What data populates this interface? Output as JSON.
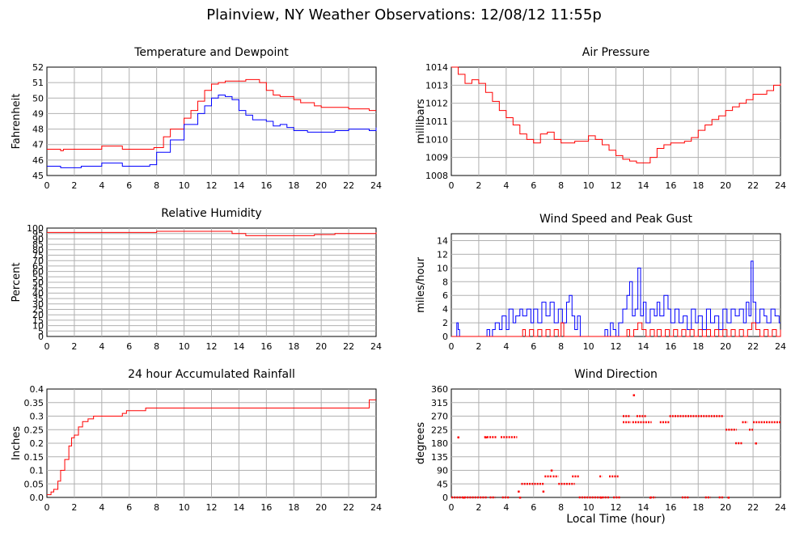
{
  "title": "Plainview, NY Weather Observations: 12/08/12 11:55p",
  "x_axis_label": "Local Time (hour)",
  "colors": {
    "red": "#ff0000",
    "blue": "#0000ff",
    "grid": "#b0b0b0"
  },
  "chart_data": [
    {
      "type": "line",
      "title": "Temperature and Dewpoint",
      "ylabel": "Fahrenheit",
      "xlim": [
        0,
        24
      ],
      "ylim": [
        45,
        52
      ],
      "xticks": [
        0,
        2,
        4,
        6,
        8,
        10,
        12,
        14,
        16,
        18,
        20,
        22,
        24
      ],
      "yticks": [
        45,
        46,
        47,
        48,
        49,
        50,
        51,
        52
      ],
      "grid": true,
      "series": [
        {
          "color": "#ff0000",
          "x": [
            0,
            1,
            1.2,
            2.5,
            4,
            5.5,
            7.8,
            8.5,
            9,
            10,
            10.5,
            11,
            11.5,
            12,
            12.5,
            13,
            14,
            14.5,
            15,
            15.5,
            16,
            16.5,
            17,
            18,
            18.5,
            19.5,
            20,
            21,
            22,
            23,
            23.5,
            24
          ],
          "y": [
            46.7,
            46.6,
            46.7,
            46.7,
            46.9,
            46.7,
            46.8,
            47.5,
            48,
            48.7,
            49.2,
            49.8,
            50.5,
            50.9,
            51,
            51.1,
            51.1,
            51.2,
            51.2,
            51,
            50.5,
            50.2,
            50.1,
            49.9,
            49.7,
            49.5,
            49.4,
            49.4,
            49.3,
            49.3,
            49.2,
            49.2
          ]
        },
        {
          "color": "#0000ff",
          "x": [
            0,
            1,
            2.5,
            4,
            5.5,
            7.5,
            8,
            9,
            10,
            11,
            11.5,
            12,
            12.5,
            13,
            13.5,
            14,
            14.5,
            15,
            16,
            16.5,
            17,
            17.5,
            18,
            19,
            20,
            21,
            22,
            23,
            23.5,
            24
          ],
          "y": [
            45.6,
            45.5,
            45.6,
            45.8,
            45.6,
            45.7,
            46.5,
            47.3,
            48.3,
            49,
            49.5,
            50,
            50.2,
            50.1,
            49.9,
            49.2,
            48.9,
            48.6,
            48.5,
            48.2,
            48.3,
            48.1,
            47.9,
            47.8,
            47.8,
            47.9,
            48,
            48,
            47.9,
            48.1
          ]
        }
      ]
    },
    {
      "type": "line",
      "title": "Air Pressure",
      "ylabel": "millibars",
      "xlim": [
        0,
        24
      ],
      "ylim": [
        1008,
        1014
      ],
      "xticks": [
        0,
        2,
        4,
        6,
        8,
        10,
        12,
        14,
        16,
        18,
        20,
        22,
        24
      ],
      "yticks": [
        1008,
        1009,
        1010,
        1011,
        1012,
        1013,
        1014
      ],
      "grid": true,
      "series": [
        {
          "color": "#ff0000",
          "x": [
            0,
            0.5,
            1,
            1.5,
            2,
            2.5,
            3,
            3.5,
            4,
            4.5,
            5,
            5.5,
            6,
            6.5,
            7,
            7.5,
            8,
            9,
            10,
            10.5,
            11,
            11.5,
            12,
            12.5,
            13,
            13.5,
            14,
            14.5,
            15,
            15.5,
            16,
            17,
            17.5,
            18,
            18.5,
            19,
            19.5,
            20,
            20.5,
            21,
            21.5,
            22,
            23,
            23.5,
            24
          ],
          "y": [
            1014,
            1013.6,
            1013.1,
            1013.3,
            1013.1,
            1012.6,
            1012.1,
            1011.6,
            1011.2,
            1010.8,
            1010.3,
            1010,
            1009.8,
            1010.3,
            1010.4,
            1010,
            1009.8,
            1009.9,
            1010.2,
            1010,
            1009.7,
            1009.4,
            1009.1,
            1008.9,
            1008.8,
            1008.7,
            1008.7,
            1009,
            1009.5,
            1009.7,
            1009.8,
            1009.9,
            1010.1,
            1010.5,
            1010.8,
            1011.1,
            1011.3,
            1011.6,
            1011.8,
            1012,
            1012.2,
            1012.5,
            1012.7,
            1013,
            1013.1
          ]
        }
      ]
    },
    {
      "type": "line",
      "title": "Relative Humidity",
      "ylabel": "Percent",
      "xlim": [
        0,
        24
      ],
      "ylim": [
        0,
        100
      ],
      "xticks": [
        0,
        2,
        4,
        6,
        8,
        10,
        12,
        14,
        16,
        18,
        20,
        22,
        24
      ],
      "yticks": [
        0,
        5,
        10,
        15,
        20,
        25,
        30,
        35,
        40,
        45,
        50,
        55,
        60,
        65,
        70,
        75,
        80,
        85,
        90,
        95,
        100
      ],
      "grid": true,
      "series": [
        {
          "color": "#ff0000",
          "x": [
            0,
            8,
            12.5,
            13.5,
            14.5,
            16,
            19.5,
            21,
            24
          ],
          "y": [
            96,
            97,
            97,
            95,
            93,
            93,
            94,
            95,
            96
          ]
        }
      ]
    },
    {
      "type": "line",
      "title": "Wind Speed and Peak Gust",
      "ylabel": "miles/hour",
      "xlim": [
        0,
        24
      ],
      "ylim": [
        0,
        15
      ],
      "xticks": [
        0,
        2,
        4,
        6,
        8,
        10,
        12,
        14,
        16,
        18,
        20,
        22,
        24
      ],
      "yticks": [
        0,
        2,
        4,
        6,
        8,
        10,
        12,
        14
      ],
      "grid": true,
      "series": [
        {
          "color": "#0000ff",
          "x": [
            0,
            0.3,
            0.4,
            0.5,
            0.6,
            2.5,
            2.6,
            2.8,
            3.0,
            3.2,
            3.5,
            3.7,
            4.0,
            4.2,
            4.5,
            4.7,
            5.0,
            5.2,
            5.5,
            5.8,
            6.0,
            6.3,
            6.6,
            6.9,
            7.2,
            7.5,
            7.8,
            8.1,
            8.4,
            8.6,
            8.8,
            9.0,
            9.2,
            9.4,
            11.0,
            11.2,
            11.4,
            11.6,
            11.8,
            12.0,
            12.2,
            12.5,
            12.8,
            13.0,
            13.2,
            13.4,
            13.6,
            13.8,
            14.0,
            14.2,
            14.5,
            14.8,
            15.0,
            15.2,
            15.5,
            15.8,
            16.0,
            16.3,
            16.6,
            16.9,
            17.2,
            17.5,
            17.8,
            18.0,
            18.3,
            18.6,
            18.9,
            19.2,
            19.5,
            19.8,
            20.1,
            20.4,
            20.7,
            21.0,
            21.3,
            21.5,
            21.7,
            21.85,
            22.0,
            22.2,
            22.5,
            22.8,
            23.0,
            23.3,
            23.6,
            23.9,
            24.0
          ],
          "y": [
            0,
            0,
            2,
            1,
            0,
            0,
            1,
            0,
            1,
            2,
            1,
            3,
            1,
            4,
            2,
            3,
            4,
            3,
            4,
            2,
            4,
            2,
            5,
            3,
            5,
            2,
            4,
            2,
            5,
            6,
            3,
            1,
            3,
            0,
            0,
            1,
            0,
            2,
            1,
            0,
            2,
            4,
            6,
            8,
            3,
            4,
            10,
            3,
            5,
            2,
            4,
            3,
            5,
            3,
            6,
            4,
            2,
            4,
            2,
            3,
            1,
            4,
            2,
            3,
            1,
            4,
            2,
            3,
            1,
            4,
            2,
            4,
            3,
            4,
            2,
            5,
            3,
            11,
            5,
            2,
            4,
            3,
            2,
            4,
            3,
            2,
            2
          ]
        },
        {
          "color": "#ff0000",
          "x": [
            0,
            5.0,
            5.2,
            5.4,
            5.7,
            6.0,
            6.3,
            6.6,
            6.9,
            7.2,
            7.5,
            7.8,
            8.0,
            8.2,
            8.5,
            12.5,
            12.8,
            13.0,
            13.3,
            13.6,
            13.9,
            14.2,
            14.5,
            14.8,
            15.0,
            15.3,
            15.6,
            15.9,
            16.2,
            16.5,
            16.8,
            17.1,
            17.4,
            17.7,
            18.0,
            18.3,
            18.6,
            18.9,
            19.2,
            19.5,
            19.8,
            20.1,
            20.4,
            20.7,
            21.0,
            21.3,
            21.6,
            21.9,
            22.2,
            22.5,
            22.8,
            23.1,
            23.4,
            23.7,
            24.0
          ],
          "y": [
            0,
            0,
            1,
            0,
            1,
            0,
            1,
            0,
            1,
            0,
            1,
            0,
            2,
            0,
            0,
            0,
            1,
            0,
            1,
            2,
            1,
            0,
            1,
            0,
            1,
            0,
            1,
            0,
            1,
            0,
            1,
            0,
            1,
            0,
            1,
            0,
            1,
            0,
            1,
            0,
            1,
            0,
            1,
            0,
            1,
            0,
            1,
            2,
            1,
            0,
            1,
            0,
            1,
            0,
            1
          ]
        }
      ]
    },
    {
      "type": "line",
      "title": "24 hour Accumulated Rainfall",
      "ylabel": "Inches",
      "xlim": [
        0,
        24
      ],
      "ylim": [
        0,
        0.4
      ],
      "xticks": [
        0,
        2,
        4,
        6,
        8,
        10,
        12,
        14,
        16,
        18,
        20,
        22,
        24
      ],
      "yticks": [
        0,
        0.05,
        0.1,
        0.15,
        0.2,
        0.25,
        0.3,
        0.35,
        0.4
      ],
      "ytick_labels": [
        "0.0",
        "0.05",
        "0.1",
        "0.15",
        "0.2",
        "0.25",
        "0.3",
        "0.35",
        "0.4"
      ],
      "grid": true,
      "series": [
        {
          "color": "#ff0000",
          "x": [
            0,
            0.3,
            0.5,
            0.8,
            1.0,
            1.3,
            1.6,
            1.8,
            2.0,
            2.3,
            2.6,
            3.0,
            3.4,
            3.8,
            4.2,
            5.5,
            5.8,
            7.0,
            7.2,
            23.2,
            23.5,
            24
          ],
          "y": [
            0.01,
            0.02,
            0.03,
            0.06,
            0.1,
            0.14,
            0.19,
            0.22,
            0.23,
            0.26,
            0.28,
            0.29,
            0.3,
            0.3,
            0.3,
            0.31,
            0.32,
            0.32,
            0.33,
            0.33,
            0.36,
            0.36
          ]
        }
      ]
    },
    {
      "type": "scatter",
      "title": "Wind Direction",
      "ylabel": "degrees",
      "xlim": [
        0,
        24
      ],
      "ylim": [
        0,
        360
      ],
      "xticks": [
        0,
        2,
        4,
        6,
        8,
        10,
        12,
        14,
        16,
        18,
        20,
        22,
        24
      ],
      "yticks": [
        0,
        45,
        90,
        135,
        180,
        225,
        270,
        315,
        360
      ],
      "grid": true,
      "series": [
        {
          "color": "#ff0000",
          "segments": [
            [
              0,
              2.6,
              0
            ],
            [
              2.8,
              3.2,
              0
            ],
            [
              3.7,
              4.2,
              0
            ],
            [
              5.1,
              6.8,
              45
            ],
            [
              6.8,
              7.3,
              70
            ],
            [
              7.4,
              7.8,
              70
            ],
            [
              7.8,
              9.0,
              45
            ],
            [
              8.8,
              9.3,
              70
            ],
            [
              9.3,
              11.5,
              0
            ],
            [
              10.8,
              11.0,
              70
            ],
            [
              11.5,
              12.2,
              70
            ],
            [
              11.8,
              12.3,
              0
            ],
            [
              12.5,
              13.0,
              270
            ],
            [
              12.5,
              13.1,
              250
            ],
            [
              13.2,
              14.6,
              250
            ],
            [
              13.5,
              14.2,
              270
            ],
            [
              14.5,
              14.9,
              0
            ],
            [
              15.2,
              15.9,
              250
            ],
            [
              15.9,
              19.8,
              270
            ],
            [
              16.8,
              17.3,
              0
            ],
            [
              18.5,
              18.9,
              0
            ],
            [
              19.5,
              19.8,
              0
            ],
            [
              20.0,
              20.8,
              225
            ],
            [
              20.7,
              21.2,
              180
            ],
            [
              21.2,
              21.6,
              250
            ],
            [
              21.7,
              22.0,
              225
            ],
            [
              22.0,
              24.0,
              250
            ],
            [
              2.4,
              3.3,
              200
            ],
            [
              3.6,
              4.8,
              200
            ]
          ],
          "x": [
            0.5,
            0.9,
            2.5,
            4.9,
            5.0,
            6.7,
            7.3,
            10.9,
            13.3,
            14.5,
            20.2,
            22.2
          ],
          "y": [
            200,
            0,
            200,
            20,
            0,
            20,
            90,
            0,
            340,
            0,
            0,
            180
          ]
        }
      ]
    }
  ]
}
